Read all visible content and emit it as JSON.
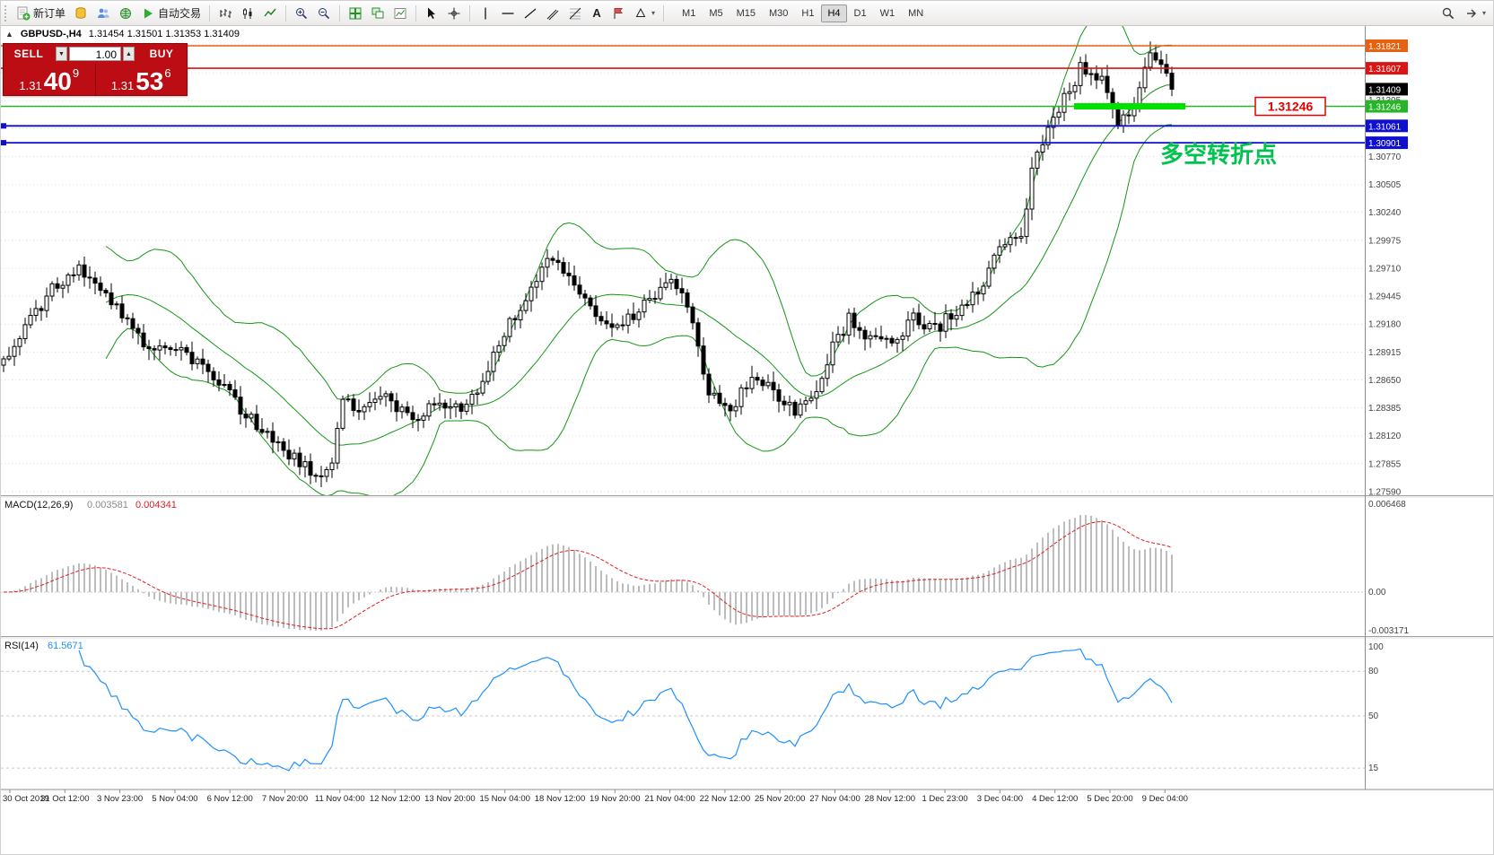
{
  "toolbar": {
    "new_order_label": "新订单",
    "auto_trading_label": "自动交易",
    "timeframes": [
      "M1",
      "M5",
      "M15",
      "M30",
      "H1",
      "H4",
      "D1",
      "W1",
      "MN"
    ],
    "active_timeframe": "H4",
    "text_tool_label": "A"
  },
  "order_panel": {
    "sell_label": "SELL",
    "buy_label": "BUY",
    "volume": "1.00",
    "sell_price_small": "1.31",
    "sell_price_big": "40",
    "sell_price_sup": "9",
    "buy_price_small": "1.31",
    "buy_price_big": "53",
    "buy_price_sup": "6"
  },
  "chart_header": {
    "symbol": "GBPUSD-,H4",
    "ohlc": "1.31454 1.31501 1.31353 1.31409"
  },
  "annotations": {
    "turning_point_text": "多空转折点",
    "turning_point_color": "#00c24e",
    "price_tag": "1.31246",
    "price_tag_color": "#e00000"
  },
  "chart_data": {
    "type": "candlestick",
    "symbol": "GBPUSD",
    "timeframe": "H4",
    "num_candles": 218,
    "last_close": 1.31409,
    "colors": {
      "bull": "#ffffff",
      "bear": "#000000",
      "wick": "#000000",
      "grid": "#dcdcdc"
    },
    "close_anchors": [
      [
        0,
        1.288
      ],
      [
        4,
        1.2915
      ],
      [
        9,
        1.295
      ],
      [
        14,
        1.2968
      ],
      [
        18,
        1.2955
      ],
      [
        23,
        1.292
      ],
      [
        27,
        1.289
      ],
      [
        31,
        1.29
      ],
      [
        36,
        1.288
      ],
      [
        42,
        1.285
      ],
      [
        47,
        1.2822
      ],
      [
        52,
        1.28
      ],
      [
        56,
        1.2782
      ],
      [
        59,
        1.277
      ],
      [
        61,
        1.279
      ],
      [
        63,
        1.285
      ],
      [
        66,
        1.2838
      ],
      [
        71,
        1.2848
      ],
      [
        76,
        1.283
      ],
      [
        81,
        1.2842
      ],
      [
        86,
        1.2836
      ],
      [
        89,
        1.2865
      ],
      [
        93,
        1.291
      ],
      [
        98,
        1.295
      ],
      [
        101,
        1.2978
      ],
      [
        105,
        1.2962
      ],
      [
        109,
        1.293
      ],
      [
        113,
        1.2912
      ],
      [
        117,
        1.2928
      ],
      [
        121,
        1.2942
      ],
      [
        124,
        1.2965
      ],
      [
        127,
        1.293
      ],
      [
        129,
        1.29
      ],
      [
        131,
        1.2852
      ],
      [
        135,
        1.2838
      ],
      [
        139,
        1.2868
      ],
      [
        143,
        1.2856
      ],
      [
        147,
        1.2832
      ],
      [
        151,
        1.2848
      ],
      [
        154,
        1.2898
      ],
      [
        157,
        1.2922
      ],
      [
        161,
        1.2905
      ],
      [
        165,
        1.2898
      ],
      [
        169,
        1.2922
      ],
      [
        173,
        1.2912
      ],
      [
        177,
        1.2932
      ],
      [
        181,
        1.2948
      ],
      [
        185,
        1.2995
      ],
      [
        189,
        1.3002
      ],
      [
        191,
        1.3065
      ],
      [
        194,
        1.3105
      ],
      [
        197,
        1.3132
      ],
      [
        200,
        1.316
      ],
      [
        203,
        1.3155
      ],
      [
        205,
        1.3142
      ],
      [
        207,
        1.3105
      ],
      [
        210,
        1.3128
      ],
      [
        213,
        1.3178
      ],
      [
        215,
        1.316
      ],
      [
        217,
        1.31409
      ]
    ],
    "indicators": {
      "bollinger": {
        "period": 20,
        "deviation": 2,
        "color": "#169616"
      },
      "macd": {
        "label": "MACD(12,26,9)",
        "value_main": "0.003581",
        "value_signal": "0.004341",
        "scale_max": 0.006468,
        "scale_min": -0.003171,
        "axis_labels": [
          {
            "v": 0.006468,
            "text": "0.006468"
          },
          {
            "v": 0,
            "text": "0.00"
          },
          {
            "v": -0.003171,
            "text": "-0.003171"
          }
        ],
        "hist_color": "#bdbdbd",
        "signal_color": "#e02020"
      },
      "rsi": {
        "label": "RSI(14)",
        "value": "61.5671",
        "color": "#1e90ff",
        "levels": [
          {
            "v": 100,
            "text": "100"
          },
          {
            "v": 80,
            "text": "80"
          },
          {
            "v": 50,
            "text": "50"
          },
          {
            "v": 15,
            "text": "15"
          }
        ]
      }
    },
    "hlines": [
      {
        "price": 1.31821,
        "color": "#e8610f",
        "label": "1.31821",
        "width": 1.4
      },
      {
        "price": 1.31607,
        "color": "#dd1414",
        "label": "1.31607",
        "width": 1.6
      },
      {
        "price": 1.31246,
        "color": "#28b428",
        "label": "1.31246",
        "width": 1.4,
        "thick_segment": [
          1196,
          1320
        ],
        "thick_color": "#00e100"
      },
      {
        "price": 1.31061,
        "color": "#0f0fd0",
        "label": "1.31061",
        "width": 1.8,
        "handles": true
      },
      {
        "price": 1.30901,
        "color": "#0f0fd0",
        "label": "1.30901",
        "width": 1.8,
        "handles": true
      }
    ],
    "last_price_box": {
      "value": 1.31409,
      "label": "1.31409",
      "bg": "#000000"
    },
    "y_axis": {
      "top_price": 1.31821,
      "bottom_price": 1.2759,
      "grid_step": 0.00265,
      "grid_labels": [
        "1.31305",
        "1.30770",
        "1.30505",
        "1.30240",
        "1.29975",
        "1.29710",
        "1.29445",
        "1.29180",
        "1.28915",
        "1.28650",
        "1.28385",
        "1.28120",
        "1.27855",
        "1.27590"
      ]
    },
    "x_axis": {
      "labels": [
        "30 Oct 2019",
        "31 Oct 12:00",
        "3 Nov 23:00",
        "5 Nov 04:00",
        "6 Nov 12:00",
        "7 Nov 20:00",
        "11 Nov 04:00",
        "12 Nov 12:00",
        "13 Nov 20:00",
        "15 Nov 04:00",
        "18 Nov 12:00",
        "19 Nov 20:00",
        "21 Nov 04:00",
        "22 Nov 12:00",
        "25 Nov 20:00",
        "27 Nov 04:00",
        "28 Nov 12:00",
        "1 Dec 23:00",
        "3 Dec 04:00",
        "4 Dec 12:00",
        "5 Dec 20:00",
        "9 Dec 04:00"
      ]
    }
  }
}
